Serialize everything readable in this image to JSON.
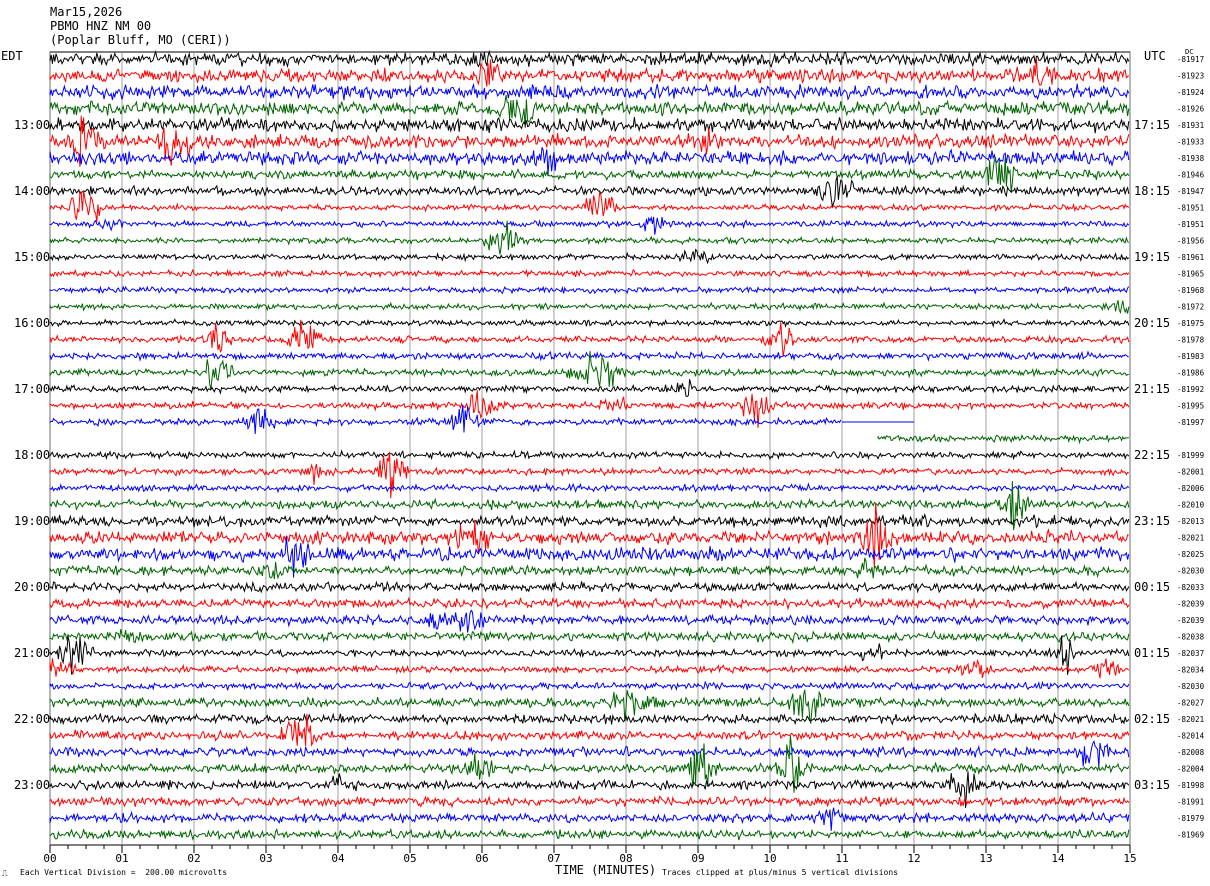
{
  "header": {
    "date": "Mar15,2026",
    "station": "PBMO HNZ NM 00",
    "location": "(Poplar Bluff, MO (CERI))"
  },
  "left_timezone": "EDT",
  "right_timezone": "UTC",
  "dc_label": "DC",
  "chart_data": {
    "type": "line",
    "title": "",
    "xlabel": "TIME (MINUTES)",
    "xlim": [
      0,
      15
    ],
    "x_ticks": [
      "00",
      "01",
      "02",
      "03",
      "04",
      "05",
      "06",
      "07",
      "08",
      "09",
      "10",
      "11",
      "12",
      "13",
      "14",
      "15"
    ],
    "row_count": 48,
    "rows_per_hour": 4,
    "row_duration_minutes": 15,
    "trace_colors": [
      "#000000",
      "#ff0000",
      "#0000ff",
      "#006400"
    ],
    "left_hour_labels": [
      "13:00",
      "14:00",
      "15:00",
      "16:00",
      "17:00",
      "18:00",
      "19:00",
      "20:00",
      "21:00",
      "22:00",
      "23:00"
    ],
    "right_hour_labels": [
      "17:15",
      "18:15",
      "19:15",
      "20:15",
      "21:15",
      "22:15",
      "23:15",
      "00:15",
      "01:15",
      "02:15",
      "03:15"
    ],
    "dc_offsets": [
      "-81917",
      "-81923",
      "-81924",
      "-81926",
      "-81931",
      "-81933",
      "-81938",
      "-81946",
      "-81947",
      "-81951",
      "-81951",
      "-81956",
      "-81961",
      "-81965",
      "-81968",
      "-81972",
      "-81975",
      "-81978",
      "-81983",
      "-81986",
      "-81992",
      "-81995",
      "-81997",
      "",
      "-81999",
      "-82001",
      "-82006",
      "-82010",
      "-82013",
      "-82021",
      "-82025",
      "-82030",
      "-82033",
      "-82039",
      "-82039",
      "-82038",
      "-82037",
      "-82034",
      "-82030",
      "-82027",
      "-82021",
      "-82014",
      "-82008",
      "-82004",
      "-81998",
      "-81991",
      "-81979",
      "-81969"
    ],
    "noise_levels": [
      3,
      3,
      3,
      3,
      3,
      3,
      3,
      2,
      2,
      1.3,
      1.3,
      1.3,
      1.3,
      1.3,
      1.3,
      1.3,
      1.3,
      1.5,
      1.5,
      1.5,
      1.5,
      1.5,
      1.5,
      1.5,
      1.5,
      1.5,
      1.5,
      2,
      2.5,
      3,
      3,
      2,
      2,
      2,
      2,
      2,
      1.5,
      1.5,
      1.5,
      2,
      2,
      2,
      2,
      2,
      2,
      2,
      2,
      2
    ],
    "gap": {
      "row": 22,
      "from_minute": 11.0,
      "to_minute": 12.0
    },
    "gap_start": {
      "row": 23,
      "start_minute": 11.5
    },
    "scale_note": "Each Vertical Division =  200.00 microvolts",
    "clip_note": "Traces clipped at plus/minus 5 vertical divisions"
  }
}
